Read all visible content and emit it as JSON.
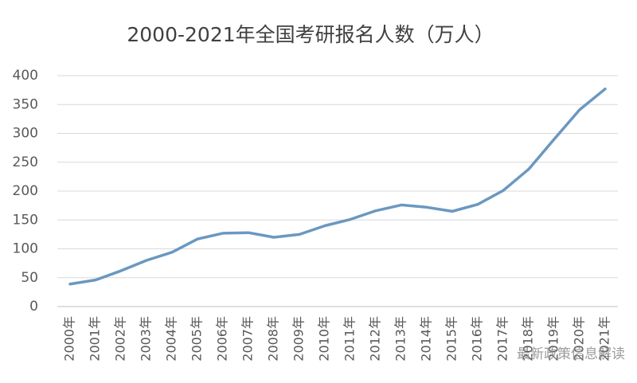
{
  "chart_data": {
    "type": "line",
    "title": "2000-2021年全国考研报名人数（万人）",
    "categories": [
      "2000年",
      "2001年",
      "2002年",
      "2003年",
      "2004年",
      "2005年",
      "2006年",
      "2007年",
      "2008年",
      "2009年",
      "2010年",
      "2011年",
      "2012年",
      "2013年",
      "2014年",
      "2015年",
      "2016年",
      "2017年",
      "2018年",
      "2019年",
      "2020年",
      "2021年"
    ],
    "series": [
      {
        "name": "全国考研报名人数",
        "color": "#6a98c0",
        "values": [
          39,
          46,
          62,
          80,
          94,
          117,
          127,
          128,
          120,
          125,
          140,
          151,
          166,
          176,
          172,
          165,
          177,
          201,
          238,
          290,
          341,
          377
        ]
      }
    ],
    "ylim": [
      0,
      400
    ],
    "yticks": [
      0,
      50,
      100,
      150,
      200,
      250,
      300,
      350,
      400
    ],
    "grid": true
  },
  "watermark": "最新政策信息解读"
}
